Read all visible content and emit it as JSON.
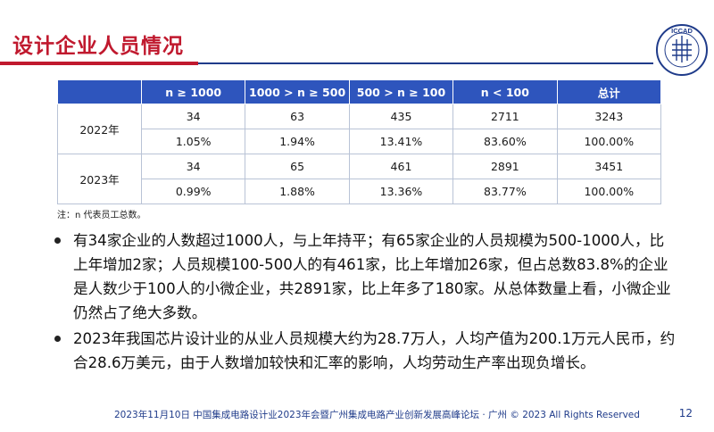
{
  "slide": {
    "title": "设计企业人员情况",
    "logo_text": "ICCAD",
    "logo_ring_text": "中国集成电路设计业年会暨展览会"
  },
  "table": {
    "headers": [
      "",
      "n ≥ 1000",
      "1000 > n ≥ 500",
      "500 > n ≥ 100",
      "n < 100",
      "总计"
    ],
    "rows": [
      {
        "year": "2022年",
        "counts": [
          "34",
          "63",
          "435",
          "2711",
          "3243"
        ],
        "percents": [
          "1.05%",
          "1.94%",
          "13.41%",
          "83.60%",
          "100.00%"
        ]
      },
      {
        "year": "2023年",
        "counts": [
          "34",
          "65",
          "461",
          "2891",
          "3451"
        ],
        "percents": [
          "0.99%",
          "1.88%",
          "13.36%",
          "83.77%",
          "100.00%"
        ]
      }
    ],
    "note": "注：n 代表员工总数。"
  },
  "bullets": [
    "有34家企业的人数超过1000人，与上年持平；有65家企业的人员规模为500-1000人，比上年增加2家；人员规模100-500人的有461家，比上年增加26家，但占总数83.8%的企业是人数少于100人的小微企业，共2891家，比上年多了180家。从总体数量上看，小微企业仍然占了绝大多数。",
    "2023年我国芯片设计业的从业人员规模大约为28.7万人，人均产值为200.1万元人民币，约合28.6万美元，由于人数增加较快和汇率的影响，人均劳动生产率出现负增长。"
  ],
  "footer": {
    "text": "2023年11月10日  中国集成电路设计业2023年会暨广州集成电路产业创新发展高峰论坛 · 广州 © 2023 All Rights Reserved",
    "page": "12"
  },
  "colors": {
    "title_red": "#c0192e",
    "header_blue": "#2e55bd",
    "rule_blue": "#1f3b8a"
  }
}
